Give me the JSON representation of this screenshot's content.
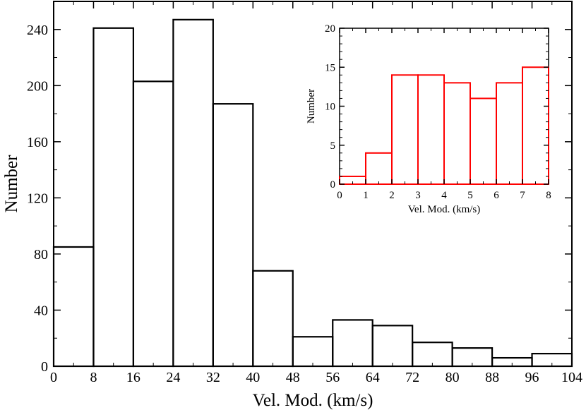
{
  "chart_data": [
    {
      "id": "main",
      "type": "histogram",
      "xlabel": "Vel. Mod. (km/s)",
      "ylabel": "Number",
      "xlim": [
        0,
        104
      ],
      "ylim": [
        0,
        260
      ],
      "x_ticks": [
        "0",
        "8",
        "16",
        "24",
        "32",
        "40",
        "48",
        "56",
        "64",
        "72",
        "80",
        "88",
        "96",
        "104"
      ],
      "y_ticks": [
        "0",
        "40",
        "80",
        "120",
        "160",
        "200",
        "240"
      ],
      "color": "#000000",
      "bins": [
        {
          "x0": 0,
          "x1": 8,
          "value": 85
        },
        {
          "x0": 8,
          "x1": 16,
          "value": 241
        },
        {
          "x0": 16,
          "x1": 24,
          "value": 203
        },
        {
          "x0": 24,
          "x1": 32,
          "value": 247
        },
        {
          "x0": 32,
          "x1": 40,
          "value": 187
        },
        {
          "x0": 40,
          "x1": 48,
          "value": 68
        },
        {
          "x0": 48,
          "x1": 56,
          "value": 21
        },
        {
          "x0": 56,
          "x1": 64,
          "value": 33
        },
        {
          "x0": 64,
          "x1": 72,
          "value": 29
        },
        {
          "x0": 72,
          "x1": 80,
          "value": 17
        },
        {
          "x0": 80,
          "x1": 88,
          "value": 13
        },
        {
          "x0": 88,
          "x1": 96,
          "value": 6
        },
        {
          "x0": 96,
          "x1": 104,
          "value": 9
        }
      ]
    },
    {
      "id": "inset",
      "type": "histogram",
      "xlabel": "Vel. Mod. (km/s)",
      "ylabel": "Number",
      "xlim": [
        0,
        8
      ],
      "ylim": [
        0,
        20
      ],
      "x_ticks": [
        "0",
        "1",
        "2",
        "3",
        "4",
        "5",
        "6",
        "7",
        "8"
      ],
      "y_ticks": [
        "0",
        "5",
        "10",
        "15",
        "20"
      ],
      "color": "#ff0000",
      "bins": [
        {
          "x0": 0,
          "x1": 1,
          "value": 1
        },
        {
          "x0": 1,
          "x1": 2,
          "value": 4
        },
        {
          "x0": 2,
          "x1": 3,
          "value": 14
        },
        {
          "x0": 3,
          "x1": 4,
          "value": 14
        },
        {
          "x0": 4,
          "x1": 5,
          "value": 13
        },
        {
          "x0": 5,
          "x1": 6,
          "value": 11
        },
        {
          "x0": 6,
          "x1": 7,
          "value": 13
        },
        {
          "x0": 7,
          "x1": 8,
          "value": 15
        }
      ]
    }
  ]
}
